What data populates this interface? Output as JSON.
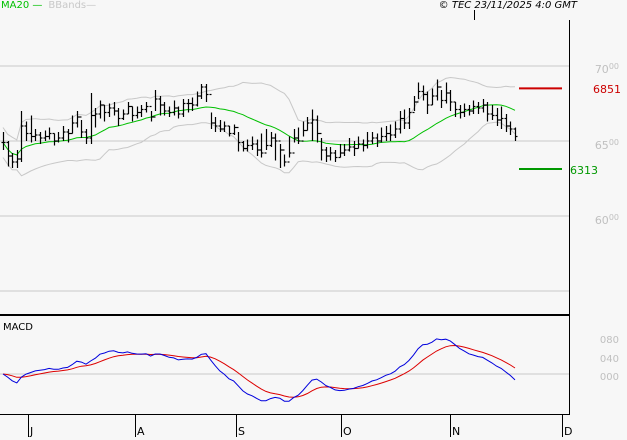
{
  "legend": {
    "ma20": "MA20",
    "bbands": "BBands"
  },
  "copyright": "© TEC 23/11/2025 4:0 GMT",
  "colors": {
    "background": "#f7f7f7",
    "ma20": "#00c000",
    "bbands": "#c8c8c8",
    "bars": "#000000",
    "resistance": "#cc0000",
    "support": "#009900",
    "macd": "#0000dd",
    "signal": "#dd0000",
    "grid": "#c8c8c8"
  },
  "chart_data": [
    {
      "type": "ohlc",
      "title": "",
      "overlays": [
        "MA20",
        "BBands"
      ],
      "ylim": [
        52.5,
        73.0
      ],
      "y_ticks": [
        {
          "int": "70",
          "dec": "00",
          "value": 70
        },
        {
          "int": "65",
          "dec": "00",
          "value": 65
        },
        {
          "int": "60",
          "dec": "00",
          "value": 60
        }
      ],
      "grid_values": [
        70,
        65,
        60,
        55
      ],
      "x_months": [
        "J",
        "A",
        "S",
        "O",
        "N",
        "D"
      ],
      "levels": [
        {
          "name": "resistance",
          "value": 68.51,
          "label": "6851",
          "color": "#cc0000"
        },
        {
          "name": "support",
          "value": 63.13,
          "label": "6313",
          "color": "#009900"
        }
      ],
      "bars_hlc": [
        [
          65.6,
          64.4,
          64.9
        ],
        [
          65.0,
          63.3,
          64.0
        ],
        [
          64.2,
          63.2,
          63.6
        ],
        [
          64.4,
          63.2,
          63.8
        ],
        [
          67.0,
          63.6,
          66.0
        ],
        [
          66.3,
          65.0,
          65.5
        ],
        [
          66.7,
          64.9,
          65.3
        ],
        [
          65.8,
          65.0,
          65.4
        ],
        [
          65.6,
          64.8,
          65.2
        ],
        [
          65.7,
          65.0,
          65.3
        ],
        [
          65.9,
          65.1,
          65.5
        ],
        [
          65.5,
          64.7,
          65.0
        ],
        [
          65.6,
          64.9,
          65.2
        ],
        [
          66.0,
          65.0,
          65.6
        ],
        [
          65.8,
          64.9,
          65.5
        ],
        [
          66.7,
          65.5,
          66.2
        ],
        [
          67.0,
          65.9,
          66.6
        ],
        [
          66.4,
          65.2,
          65.6
        ],
        [
          65.8,
          64.8,
          65.2
        ],
        [
          68.2,
          64.8,
          66.7
        ],
        [
          67.2,
          65.9,
          66.8
        ],
        [
          67.7,
          66.5,
          67.4
        ],
        [
          67.4,
          66.3,
          66.9
        ],
        [
          67.5,
          66.6,
          67.2
        ],
        [
          67.6,
          66.7,
          67.0
        ],
        [
          67.2,
          66.0,
          66.5
        ],
        [
          67.1,
          66.4,
          66.8
        ],
        [
          67.6,
          66.8,
          67.3
        ],
        [
          67.3,
          66.3,
          66.7
        ],
        [
          67.3,
          66.5,
          66.9
        ],
        [
          67.4,
          66.6,
          67.1
        ],
        [
          67.6,
          66.9,
          67.3
        ],
        [
          67.0,
          66.3,
          66.6
        ],
        [
          68.4,
          67.0,
          67.8
        ],
        [
          68.0,
          66.7,
          67.4
        ],
        [
          67.6,
          66.7,
          67.0
        ],
        [
          67.3,
          66.6,
          66.9
        ],
        [
          67.7,
          66.7,
          67.2
        ],
        [
          67.3,
          66.5,
          66.8
        ],
        [
          67.8,
          66.6,
          67.5
        ],
        [
          67.8,
          66.9,
          67.5
        ],
        [
          67.9,
          67.0,
          67.4
        ],
        [
          68.3,
          67.3,
          68.0
        ],
        [
          68.8,
          67.8,
          68.6
        ],
        [
          68.8,
          67.6,
          68.1
        ],
        [
          66.9,
          65.8,
          66.2
        ],
        [
          66.6,
          65.6,
          66.0
        ],
        [
          66.4,
          65.6,
          65.8
        ],
        [
          66.3,
          65.6,
          66.0
        ],
        [
          66.0,
          65.3,
          65.5
        ],
        [
          66.1,
          65.4,
          65.9
        ],
        [
          65.6,
          64.3,
          64.9
        ],
        [
          65.0,
          64.3,
          64.5
        ],
        [
          65.1,
          64.3,
          64.7
        ],
        [
          65.3,
          64.4,
          64.8
        ],
        [
          65.1,
          64.0,
          64.4
        ],
        [
          65.5,
          63.9,
          64.2
        ],
        [
          65.8,
          64.4,
          64.7
        ],
        [
          65.6,
          64.6,
          65.2
        ],
        [
          65.5,
          63.7,
          65.0
        ],
        [
          64.8,
          63.2,
          64.4
        ],
        [
          64.1,
          63.3,
          63.6
        ],
        [
          65.3,
          63.9,
          64.2
        ],
        [
          65.8,
          64.9,
          65.2
        ],
        [
          65.9,
          64.8,
          65.0
        ],
        [
          66.3,
          65.3,
          65.7
        ],
        [
          66.6,
          65.7,
          66.2
        ],
        [
          67.1,
          65.0,
          66.4
        ],
        [
          66.7,
          64.9,
          65.5
        ],
        [
          65.2,
          63.7,
          64.4
        ],
        [
          64.6,
          63.6,
          64.0
        ],
        [
          64.6,
          63.7,
          64.2
        ],
        [
          64.4,
          63.6,
          63.9
        ],
        [
          64.8,
          63.9,
          64.2
        ],
        [
          64.8,
          64.0,
          64.4
        ],
        [
          65.2,
          64.3,
          64.6
        ],
        [
          65.0,
          64.0,
          64.5
        ],
        [
          65.3,
          64.5,
          64.8
        ],
        [
          65.1,
          64.3,
          64.7
        ],
        [
          65.6,
          64.5,
          65.0
        ],
        [
          65.6,
          64.8,
          65.2
        ],
        [
          65.5,
          64.6,
          65.0
        ],
        [
          65.9,
          64.9,
          65.3
        ],
        [
          66.0,
          65.0,
          65.5
        ],
        [
          66.1,
          65.0,
          65.4
        ],
        [
          66.3,
          65.2,
          65.8
        ],
        [
          67.0,
          65.5,
          66.5
        ],
        [
          67.1,
          65.8,
          66.2
        ],
        [
          67.2,
          65.8,
          66.9
        ],
        [
          68.0,
          67.0,
          67.6
        ],
        [
          68.9,
          67.8,
          68.3
        ],
        [
          68.7,
          67.7,
          68.1
        ],
        [
          68.3,
          66.8,
          67.4
        ],
        [
          68.5,
          67.4,
          68.0
        ],
        [
          69.1,
          67.7,
          68.6
        ],
        [
          68.4,
          67.2,
          67.7
        ],
        [
          68.9,
          67.5,
          68.2
        ],
        [
          68.4,
          67.0,
          67.6
        ],
        [
          67.6,
          66.6,
          67.1
        ],
        [
          67.4,
          66.5,
          66.9
        ],
        [
          67.5,
          66.6,
          67.1
        ],
        [
          67.4,
          66.7,
          67.0
        ],
        [
          67.7,
          66.8,
          67.3
        ],
        [
          67.6,
          66.8,
          67.2
        ],
        [
          67.8,
          66.9,
          67.4
        ],
        [
          67.6,
          66.3,
          66.8
        ],
        [
          67.4,
          66.4,
          66.7
        ],
        [
          67.2,
          66.0,
          66.4
        ],
        [
          67.3,
          65.8,
          66.5
        ],
        [
          66.8,
          65.6,
          66.0
        ],
        [
          66.3,
          65.4,
          65.8
        ],
        [
          65.9,
          65.0,
          65.3
        ]
      ]
    },
    {
      "type": "line",
      "title": "MACD",
      "series": [
        {
          "name": "MACD",
          "color": "#0000dd"
        },
        {
          "name": "Signal",
          "color": "#dd0000"
        }
      ],
      "y_ticks": [
        {
          "label": "080",
          "value": 0.8
        },
        {
          "label": "040",
          "value": 0.4
        },
        {
          "label": "000",
          "value": 0.0
        }
      ],
      "ylim": [
        -0.95,
        1.35
      ]
    }
  ]
}
